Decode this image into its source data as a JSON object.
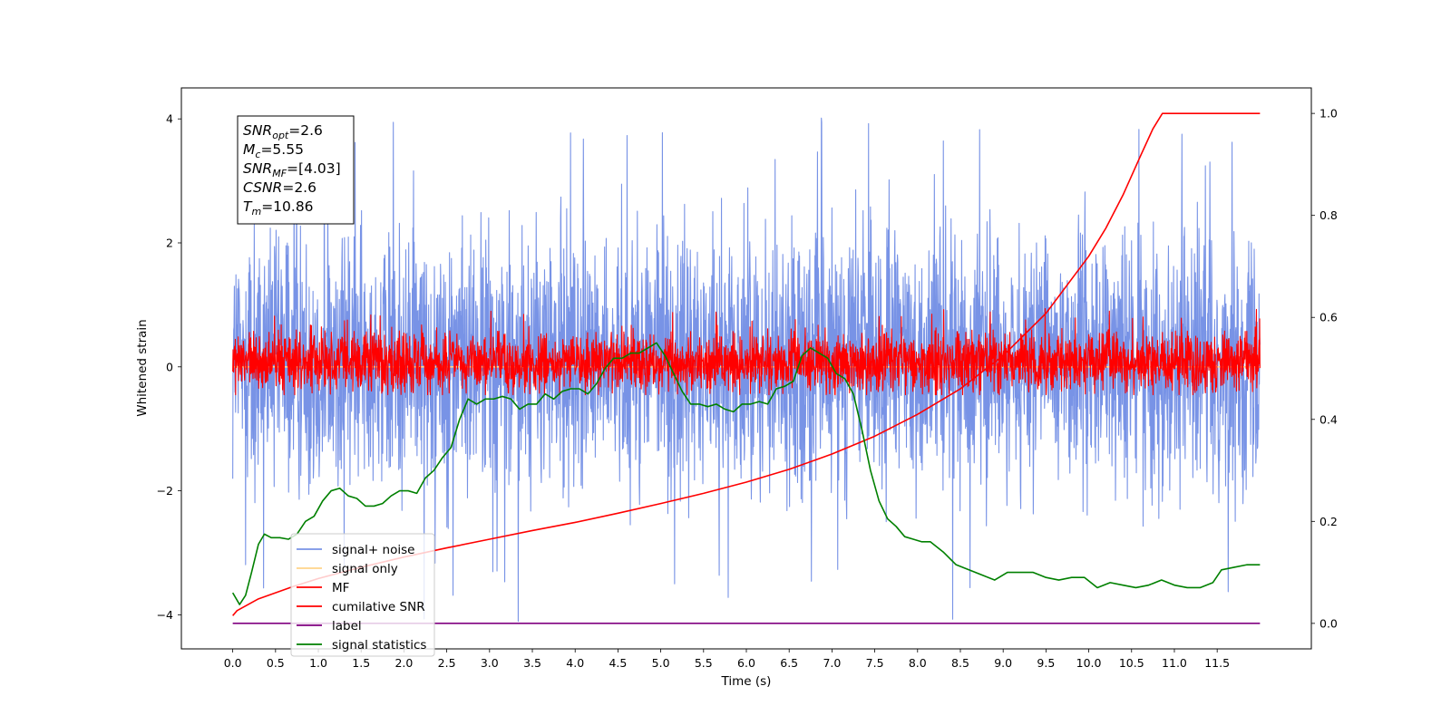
{
  "chart_data": {
    "type": "line",
    "xlabel": "Time (s)",
    "ylabel_left": "Whitened strain",
    "xlim": [
      -0.6,
      12.6
    ],
    "ylim_left": [
      -4.55,
      4.5
    ],
    "ylim_right": [
      -0.05,
      1.05
    ],
    "x_ticks": [
      "0.0",
      "0.5",
      "1.0",
      "1.5",
      "2.0",
      "2.5",
      "3.0",
      "3.5",
      "4.0",
      "4.5",
      "5.0",
      "5.5",
      "6.0",
      "6.5",
      "7.0",
      "7.5",
      "8.0",
      "8.5",
      "9.0",
      "9.5",
      "10.0",
      "10.5",
      "11.0",
      "11.5"
    ],
    "y_ticks_left": [
      "−4",
      "−2",
      "0",
      "2",
      "4"
    ],
    "y_ticks_right": [
      "0.0",
      "0.2",
      "0.4",
      "0.6",
      "0.8",
      "1.0"
    ],
    "grid": false,
    "legend_position": "lower-left",
    "info_box": {
      "lines": [
        {
          "sym": "SNR",
          "sub": "opt",
          "val": "=2.6"
        },
        {
          "sym": "M",
          "sub": "c",
          "val": "=5.55"
        },
        {
          "sym": "SNR",
          "sub": "MF",
          "val": "=[4.03]"
        },
        {
          "sym": "CSNR",
          "sub": "",
          "val": "=2.6"
        },
        {
          "sym": "T",
          "sub": "m",
          "val": "=10.86"
        }
      ]
    },
    "series": [
      {
        "name": "signal+ noise",
        "axis": "left",
        "color": "#7893e6",
        "kind": "noise",
        "x_range": [
          0,
          12
        ],
        "envelope": [
          -2.2,
          2.4
        ],
        "peaks_max": 4.05,
        "peaks_min": -4.15
      },
      {
        "name": "signal only",
        "axis": "left",
        "color": "#ffd58a",
        "kind": "flat",
        "x": [
          0,
          12
        ],
        "y": [
          0,
          0
        ]
      },
      {
        "name": "MF",
        "axis": "left",
        "color": "#ff0000",
        "kind": "noise",
        "x_range": [
          0,
          12
        ],
        "envelope": [
          -0.45,
          0.6
        ],
        "peaks_max": 0.95,
        "peaks_min": -0.45
      },
      {
        "name": "cumilative SNR",
        "axis": "right",
        "color": "#ff0000",
        "kind": "line",
        "x": [
          0,
          0.05,
          0.3,
          0.7,
          1.0,
          1.5,
          2.0,
          2.5,
          3.0,
          3.5,
          4.0,
          4.5,
          5.0,
          5.5,
          6.0,
          6.5,
          7.0,
          7.5,
          8.0,
          8.5,
          9.0,
          9.5,
          10.0,
          10.2,
          10.4,
          10.6,
          10.75,
          10.86,
          12.0
        ],
        "y": [
          0.015,
          0.025,
          0.048,
          0.072,
          0.088,
          0.11,
          0.13,
          0.148,
          0.165,
          0.182,
          0.198,
          0.216,
          0.235,
          0.255,
          0.277,
          0.302,
          0.332,
          0.367,
          0.41,
          0.46,
          0.525,
          0.608,
          0.72,
          0.775,
          0.84,
          0.915,
          0.97,
          1.0,
          1.0
        ]
      },
      {
        "name": "label",
        "axis": "right",
        "color": "#800080",
        "kind": "line",
        "x": [
          0,
          12
        ],
        "y": [
          0.0,
          0.0
        ]
      },
      {
        "name": "signal statistics",
        "axis": "right",
        "color": "#008000",
        "kind": "line",
        "x": [
          0.0,
          0.08,
          0.15,
          0.22,
          0.3,
          0.37,
          0.45,
          0.55,
          0.65,
          0.75,
          0.85,
          0.95,
          1.05,
          1.15,
          1.25,
          1.35,
          1.45,
          1.55,
          1.65,
          1.75,
          1.85,
          1.95,
          2.05,
          2.15,
          2.25,
          2.35,
          2.45,
          2.55,
          2.65,
          2.75,
          2.85,
          2.95,
          3.05,
          3.15,
          3.25,
          3.35,
          3.45,
          3.55,
          3.65,
          3.75,
          3.85,
          3.95,
          4.05,
          4.15,
          4.25,
          4.35,
          4.45,
          4.55,
          4.65,
          4.75,
          4.85,
          4.95,
          5.05,
          5.15,
          5.25,
          5.35,
          5.45,
          5.55,
          5.65,
          5.75,
          5.85,
          5.95,
          6.05,
          6.15,
          6.25,
          6.35,
          6.45,
          6.55,
          6.65,
          6.75,
          6.85,
          6.95,
          7.05,
          7.15,
          7.25,
          7.35,
          7.45,
          7.55,
          7.65,
          7.75,
          7.85,
          7.95,
          8.05,
          8.15,
          8.3,
          8.45,
          8.6,
          8.75,
          8.9,
          9.05,
          9.2,
          9.35,
          9.5,
          9.65,
          9.8,
          9.95,
          10.1,
          10.25,
          10.4,
          10.55,
          10.7,
          10.85,
          11.0,
          11.15,
          11.3,
          11.45,
          11.55,
          11.7,
          11.85,
          12.0
        ],
        "y": [
          0.06,
          0.037,
          0.055,
          0.1,
          0.155,
          0.175,
          0.168,
          0.168,
          0.165,
          0.175,
          0.2,
          0.21,
          0.24,
          0.26,
          0.265,
          0.25,
          0.245,
          0.23,
          0.23,
          0.235,
          0.25,
          0.26,
          0.26,
          0.255,
          0.285,
          0.3,
          0.325,
          0.345,
          0.4,
          0.44,
          0.43,
          0.44,
          0.44,
          0.445,
          0.44,
          0.42,
          0.43,
          0.43,
          0.45,
          0.44,
          0.455,
          0.46,
          0.46,
          0.45,
          0.47,
          0.5,
          0.52,
          0.52,
          0.53,
          0.53,
          0.54,
          0.55,
          0.525,
          0.49,
          0.455,
          0.43,
          0.43,
          0.425,
          0.43,
          0.42,
          0.415,
          0.43,
          0.43,
          0.435,
          0.43,
          0.46,
          0.465,
          0.475,
          0.525,
          0.54,
          0.53,
          0.52,
          0.49,
          0.48,
          0.45,
          0.38,
          0.3,
          0.24,
          0.205,
          0.19,
          0.17,
          0.165,
          0.16,
          0.16,
          0.14,
          0.115,
          0.105,
          0.095,
          0.085,
          0.1,
          0.1,
          0.1,
          0.09,
          0.085,
          0.09,
          0.09,
          0.07,
          0.08,
          0.075,
          0.07,
          0.075,
          0.085,
          0.075,
          0.07,
          0.07,
          0.08,
          0.105,
          0.11,
          0.115,
          0.115
        ]
      }
    ]
  }
}
